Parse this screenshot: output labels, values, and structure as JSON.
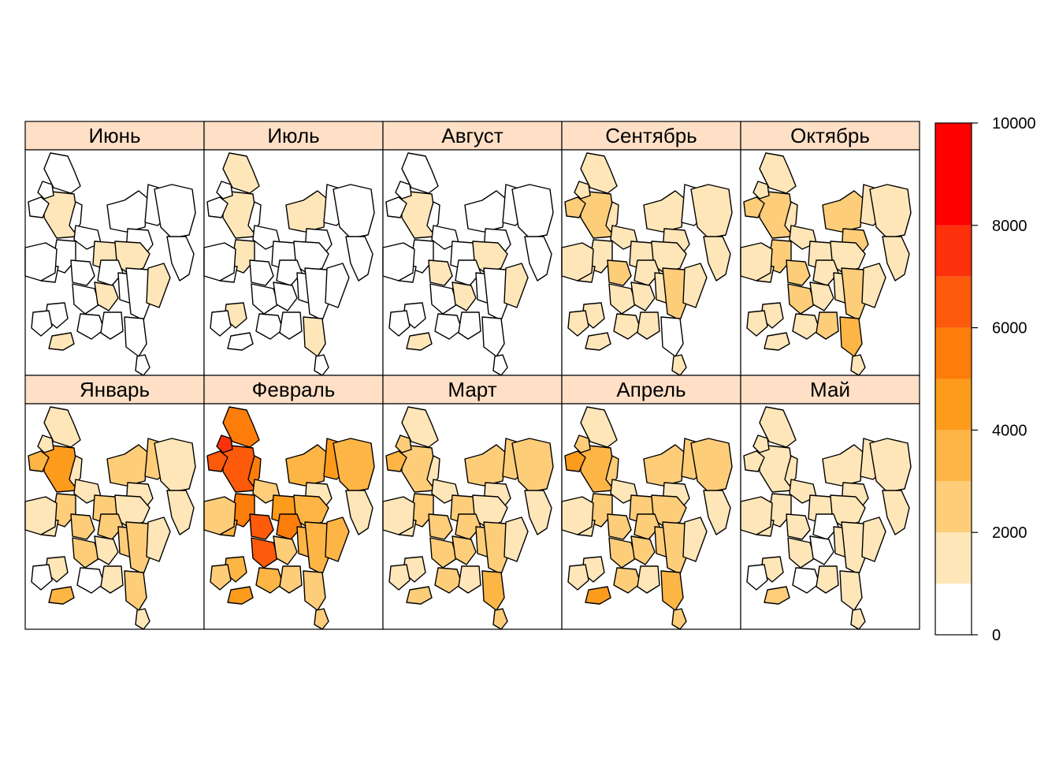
{
  "panels": [
    {
      "name": "Июнь",
      "levels": [
        0,
        1,
        0,
        0,
        0,
        0,
        0,
        0,
        0,
        0,
        0,
        1,
        1,
        0,
        0,
        0,
        0,
        0,
        1,
        0,
        0,
        1,
        0,
        0,
        1,
        0,
        0,
        0,
        0,
        0
      ]
    },
    {
      "name": "Июль",
      "levels": [
        1,
        1,
        0,
        0,
        0,
        0,
        1,
        0,
        0,
        0,
        0,
        0,
        0,
        0,
        1,
        0,
        0,
        0,
        0,
        0,
        0,
        0,
        1,
        0,
        0,
        0,
        0,
        1,
        0,
        0
      ]
    },
    {
      "name": "Август",
      "levels": [
        0,
        1,
        0,
        0,
        0,
        0,
        0,
        0,
        0,
        0,
        0,
        1,
        0,
        0,
        0,
        1,
        0,
        0,
        1,
        0,
        0,
        1,
        0,
        0,
        1,
        0,
        0,
        0,
        0,
        0
      ]
    },
    {
      "name": "Сентябрь",
      "levels": [
        1,
        2,
        2,
        1,
        1,
        1,
        1,
        0,
        1,
        1,
        1,
        1,
        1,
        1,
        1,
        2,
        1,
        1,
        1,
        1,
        2,
        1,
        1,
        1,
        1,
        1,
        1,
        0,
        1,
        1
      ]
    },
    {
      "name": "Октябрь",
      "levels": [
        1,
        2,
        2,
        1,
        1,
        1,
        2,
        1,
        1,
        1,
        2,
        1,
        1,
        1,
        2,
        2,
        1,
        2,
        1,
        1,
        2,
        1,
        1,
        1,
        1,
        1,
        2,
        3,
        1,
        1
      ]
    },
    {
      "name": "Январь",
      "levels": [
        1,
        4,
        3,
        1,
        1,
        1,
        2,
        2,
        1,
        1,
        1,
        1,
        2,
        2,
        2,
        2,
        1,
        2,
        1,
        2,
        2,
        1,
        1,
        0,
        3,
        0,
        1,
        2,
        1,
        1
      ]
    },
    {
      "name": "Февраль",
      "levels": [
        5,
        6,
        6,
        7,
        5,
        2,
        3,
        4,
        3,
        1,
        1,
        3,
        4,
        5,
        5,
        6,
        3,
        6,
        2,
        3,
        3,
        3,
        3,
        2,
        4,
        3,
        2,
        2,
        2,
        2
      ]
    },
    {
      "name": "Март",
      "levels": [
        1,
        2,
        3,
        2,
        1,
        1,
        2,
        2,
        2,
        1,
        1,
        1,
        2,
        2,
        2,
        2,
        1,
        2,
        2,
        2,
        2,
        1,
        1,
        1,
        2,
        2,
        1,
        3,
        2,
        1
      ]
    },
    {
      "name": "Апрель",
      "levels": [
        1,
        3,
        4,
        2,
        2,
        1,
        2,
        2,
        2,
        1,
        1,
        2,
        2,
        2,
        2,
        2,
        1,
        2,
        2,
        2,
        2,
        1,
        1,
        1,
        4,
        2,
        1,
        3,
        2,
        1
      ]
    },
    {
      "name": "Май",
      "levels": [
        1,
        1,
        1,
        1,
        1,
        1,
        1,
        1,
        1,
        1,
        1,
        1,
        1,
        0,
        1,
        1,
        1,
        1,
        0,
        1,
        1,
        1,
        1,
        0,
        2,
        0,
        1,
        1,
        1,
        1
      ]
    }
  ],
  "legend": {
    "colors": [
      "#ffffff",
      "#ffe6b8",
      "#fdcd7a",
      "#fdb546",
      "#fd9b1d",
      "#fd7d0a",
      "#fd5a0b",
      "#fd310b",
      "#ff0000"
    ],
    "ticks": [
      "0",
      "2000",
      "4000",
      "6000",
      "8000",
      "10000"
    ],
    "tick_values": [
      0,
      2000,
      4000,
      6000,
      8000,
      10000
    ],
    "bins": [
      0,
      1000,
      2000,
      3000,
      4000,
      5000,
      6000,
      7000,
      8000,
      10000
    ]
  },
  "strip_color": "#ffe0c6"
}
